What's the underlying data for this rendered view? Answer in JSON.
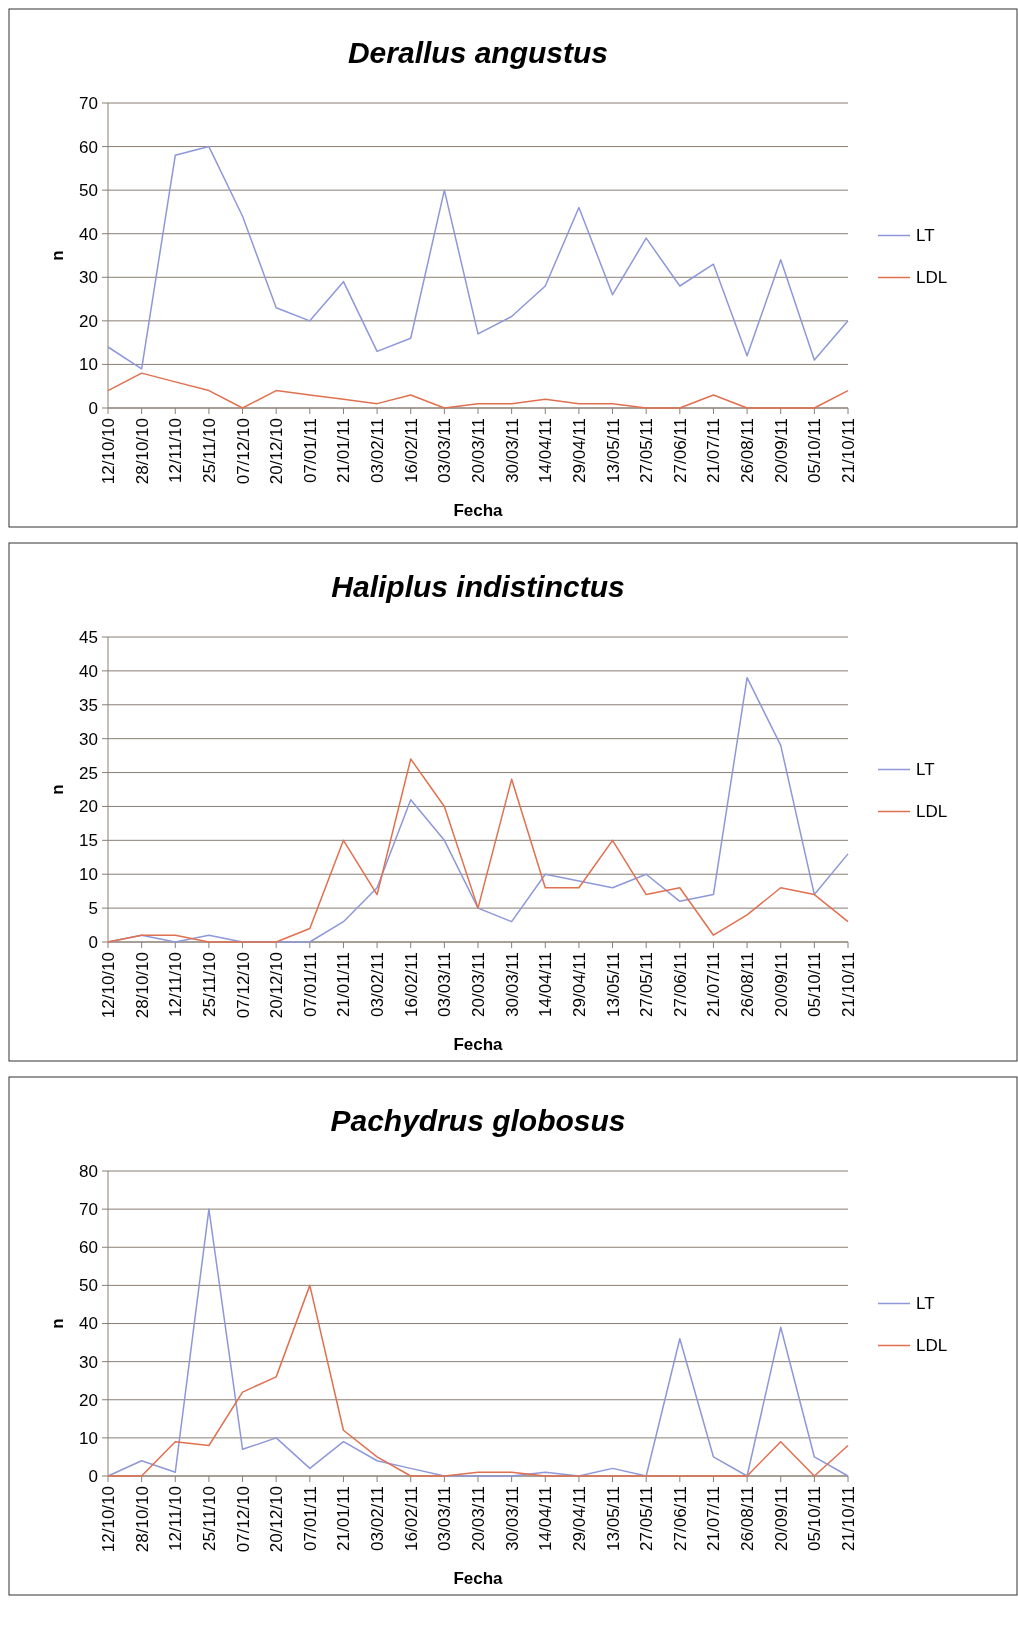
{
  "chart_data": [
    {
      "type": "line",
      "title": "Derallus angustus",
      "xlabel": "Fecha",
      "ylabel": "n",
      "categories": [
        "12/10/10",
        "28/10/10",
        "12/11/10",
        "25/11/10",
        "07/12/10",
        "20/12/10",
        "07/01/11",
        "21/01/11",
        "03/02/11",
        "16/02/11",
        "03/03/11",
        "20/03/11",
        "30/03/11",
        "14/04/11",
        "29/04/11",
        "13/05/11",
        "27/05/11",
        "27/06/11",
        "21/07/11",
        "26/08/11",
        "20/09/11",
        "05/10/11",
        "21/10/11"
      ],
      "ylim": [
        0,
        70
      ],
      "yticks": [
        0,
        10,
        20,
        30,
        40,
        50,
        60,
        70
      ],
      "grid": "y",
      "legend": "right",
      "series": [
        {
          "name": "LT",
          "color": "#8e98d8",
          "values": [
            14,
            9,
            58,
            60,
            44,
            23,
            20,
            29,
            13,
            16,
            50,
            17,
            21,
            28,
            46,
            26,
            39,
            28,
            33,
            12,
            34,
            11,
            20
          ]
        },
        {
          "name": "LDL",
          "color": "#e0704f",
          "values": [
            4,
            8,
            6,
            4,
            0,
            4,
            3,
            2,
            1,
            3,
            0,
            1,
            1,
            2,
            1,
            1,
            0,
            0,
            3,
            0,
            0,
            0,
            4
          ]
        }
      ]
    },
    {
      "type": "line",
      "title": "Haliplus indistinctus",
      "xlabel": "Fecha",
      "ylabel": "n",
      "categories": [
        "12/10/10",
        "28/10/10",
        "12/11/10",
        "25/11/10",
        "07/12/10",
        "20/12/10",
        "07/01/11",
        "21/01/11",
        "03/02/11",
        "16/02/11",
        "03/03/11",
        "20/03/11",
        "30/03/11",
        "14/04/11",
        "29/04/11",
        "13/05/11",
        "27/05/11",
        "27/06/11",
        "21/07/11",
        "26/08/11",
        "20/09/11",
        "05/10/11",
        "21/10/11"
      ],
      "ylim": [
        0,
        45
      ],
      "yticks": [
        0,
        5,
        10,
        15,
        20,
        25,
        30,
        35,
        40,
        45
      ],
      "grid": "y",
      "legend": "right",
      "series": [
        {
          "name": "LT",
          "color": "#8e98d8",
          "values": [
            0,
            1,
            0,
            1,
            0,
            0,
            0,
            3,
            8,
            21,
            15,
            5,
            3,
            10,
            9,
            8,
            10,
            6,
            7,
            39,
            29,
            7,
            13
          ]
        },
        {
          "name": "LDL",
          "color": "#e0704f",
          "values": [
            0,
            1,
            1,
            0,
            0,
            0,
            2,
            15,
            7,
            27,
            20,
            5,
            24,
            8,
            8,
            15,
            7,
            8,
            1,
            4,
            8,
            7,
            3
          ]
        }
      ]
    },
    {
      "type": "line",
      "title": "Pachydrus globosus",
      "xlabel": "Fecha",
      "ylabel": "n",
      "categories": [
        "12/10/10",
        "28/10/10",
        "12/11/10",
        "25/11/10",
        "07/12/10",
        "20/12/10",
        "07/01/11",
        "21/01/11",
        "03/02/11",
        "16/02/11",
        "03/03/11",
        "20/03/11",
        "30/03/11",
        "14/04/11",
        "29/04/11",
        "13/05/11",
        "27/05/11",
        "27/06/11",
        "21/07/11",
        "26/08/11",
        "20/09/11",
        "05/10/11",
        "21/10/11"
      ],
      "ylim": [
        0,
        80
      ],
      "yticks": [
        0,
        10,
        20,
        30,
        40,
        50,
        60,
        70,
        80
      ],
      "grid": "y",
      "legend": "right",
      "series": [
        {
          "name": "LT",
          "color": "#8e98d8",
          "values": [
            0,
            4,
            1,
            70,
            7,
            10,
            2,
            9,
            4,
            2,
            0,
            0,
            0,
            1,
            0,
            2,
            0,
            36,
            5,
            0,
            39,
            5,
            0
          ]
        },
        {
          "name": "LDL",
          "color": "#e0704f",
          "values": [
            0,
            0,
            9,
            8,
            22,
            26,
            50,
            12,
            5,
            0,
            0,
            1,
            1,
            0,
            0,
            0,
            0,
            0,
            0,
            0,
            9,
            0,
            8
          ]
        }
      ]
    }
  ]
}
